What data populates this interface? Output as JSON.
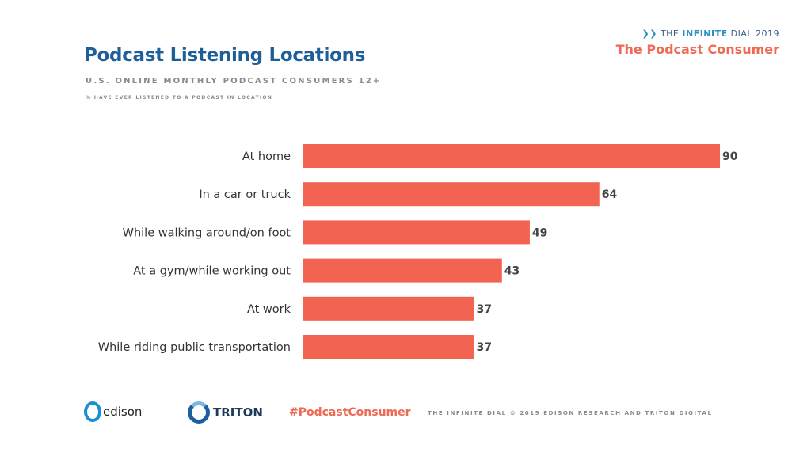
{
  "header": {
    "title": "Podcast Listening Locations",
    "subtitle": "U.S. ONLINE MONTHLY PODCAST CONSUMERS 12+",
    "note": "% HAVE EVER LISTENED TO A PODCAST IN LOCATION"
  },
  "brand": {
    "the": "THE",
    "infinite": "INFINITE",
    "dial": "DIAL",
    "year": "2019",
    "subtitle": "The Podcast Consumer"
  },
  "footer": {
    "edison": "edison",
    "triton": "TRITON",
    "hashtag": "#PodcastConsumer",
    "copyright": "THE INFINITE DIAL   © 2019 EDISON RESEARCH AND TRITON DIGITAL"
  },
  "colors": {
    "bar": "#f26451",
    "title": "#1f5f99",
    "accent": "#ee6a55"
  },
  "chart_data": {
    "type": "bar",
    "orientation": "horizontal",
    "title": "Podcast Listening Locations",
    "xlabel": "",
    "ylabel": "",
    "xlim": [
      0,
      90
    ],
    "grid": false,
    "categories": [
      "At home",
      "In a car or truck",
      "While walking around/on foot",
      "At a gym/while working out",
      "At work",
      "While riding public transportation"
    ],
    "values": [
      90,
      64,
      49,
      43,
      37,
      37
    ]
  }
}
